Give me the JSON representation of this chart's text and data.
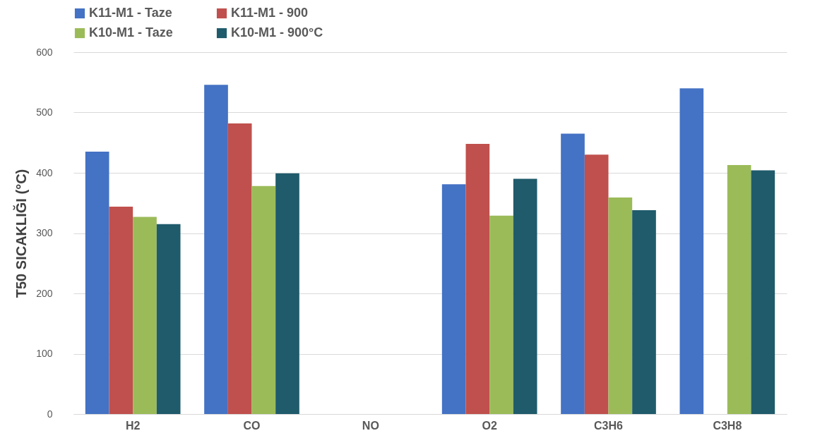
{
  "chart_data": {
    "type": "bar",
    "ylabel": "T50 SICAKLIĞI (°C)",
    "categories": [
      "H2",
      "CO",
      "NO",
      "O2",
      "C3H6",
      "C3H8"
    ],
    "series": [
      {
        "name": "K11-M1 - Taze",
        "color": "#4472c4",
        "values": [
          435,
          546,
          0,
          381,
          465,
          540
        ]
      },
      {
        "name": "K11-M1 - 900",
        "color": "#c0504d",
        "values": [
          344,
          482,
          0,
          448,
          430,
          0
        ]
      },
      {
        "name": "K10-M1 - Taze",
        "color": "#9bbb59",
        "values": [
          327,
          378,
          0,
          329,
          359,
          413
        ]
      },
      {
        "name": "K10-M1 - 900°C",
        "color": "#1f5b6b",
        "values": [
          315,
          399,
          0,
          390,
          338,
          404
        ]
      }
    ],
    "ylim": [
      0,
      600
    ],
    "yticks": [
      0,
      100,
      200,
      300,
      400,
      500,
      600
    ],
    "grid": "y",
    "legend": "top"
  }
}
